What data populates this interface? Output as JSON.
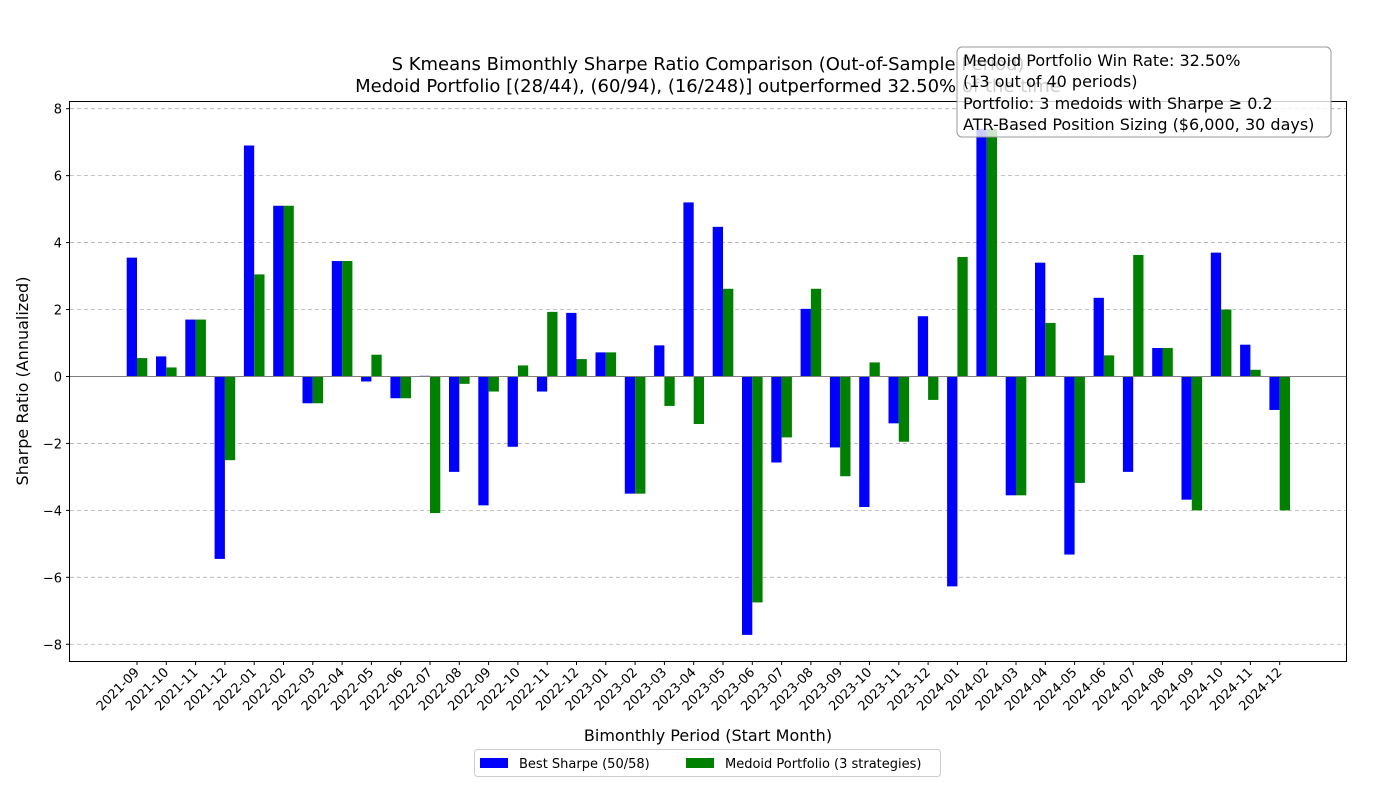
{
  "chart_data": {
    "type": "bar",
    "title": "S Kmeans Bimonthly Sharpe Ratio Comparison (Out-of-Sample Period)",
    "subtitle": "Medoid Portfolio [(28/44), (60/94), (16/248)] outperformed 32.50% of the time",
    "xlabel": "Bimonthly Period (Start Month)",
    "ylabel": "Sharpe Ratio (Annualized)",
    "ylim": [
      -8.5,
      8.2
    ],
    "yticks": [
      -8,
      -6,
      -4,
      -2,
      0,
      2,
      4,
      6,
      8
    ],
    "grid": "y-dashed",
    "legend_position": "bottom-center",
    "categories": [
      "2021-09",
      "2021-10",
      "2021-11",
      "2021-12",
      "2022-01",
      "2022-02",
      "2022-03",
      "2022-04",
      "2022-05",
      "2022-06",
      "2022-07",
      "2022-08",
      "2022-09",
      "2022-10",
      "2022-11",
      "2022-12",
      "2023-01",
      "2023-02",
      "2023-03",
      "2023-04",
      "2023-05",
      "2023-06",
      "2023-07",
      "2023-08",
      "2023-09",
      "2023-10",
      "2023-11",
      "2023-12",
      "2024-01",
      "2024-02",
      "2024-03",
      "2024-04",
      "2024-05",
      "2024-06",
      "2024-07",
      "2024-08",
      "2024-09",
      "2024-10",
      "2024-11",
      "2024-12"
    ],
    "series": [
      {
        "name": "Best Sharpe (50/58)",
        "color": "#0000ff",
        "values": [
          3.55,
          0.6,
          1.7,
          -5.45,
          6.9,
          5.1,
          -0.8,
          3.45,
          -0.15,
          -0.65,
          0.02,
          -2.85,
          -3.85,
          -2.1,
          -0.45,
          1.9,
          0.72,
          -3.5,
          0.93,
          5.2,
          4.47,
          -7.72,
          -2.57,
          2.02,
          -2.12,
          -3.9,
          -1.4,
          1.8,
          -6.27,
          7.4,
          -3.55,
          3.4,
          -5.32,
          2.35,
          -2.85,
          0.85,
          -3.68,
          3.7,
          0.95,
          -1.0
        ]
      },
      {
        "name": "Medoid Portfolio (3 strategies)",
        "color": "#008000",
        "values": [
          0.55,
          0.27,
          1.7,
          -2.5,
          3.05,
          5.1,
          -0.8,
          3.45,
          0.65,
          -0.65,
          -4.08,
          -0.22,
          -0.45,
          0.33,
          1.93,
          0.52,
          0.72,
          -3.5,
          -0.88,
          -1.42,
          2.62,
          -6.75,
          -1.82,
          2.62,
          -2.98,
          0.42,
          -1.95,
          -0.7,
          3.57,
          7.4,
          -3.55,
          1.6,
          -3.18,
          0.63,
          3.63,
          0.85,
          -4.0,
          2.0,
          0.2,
          -4.0
        ]
      }
    ],
    "info_box": [
      "Medoid Portfolio Win Rate: 32.50%",
      "(13 out of 40 periods)",
      "Portfolio: 3 medoids with Sharpe ≥ 0.2",
      "ATR-Based Position Sizing ($6,000, 30 days)"
    ]
  }
}
